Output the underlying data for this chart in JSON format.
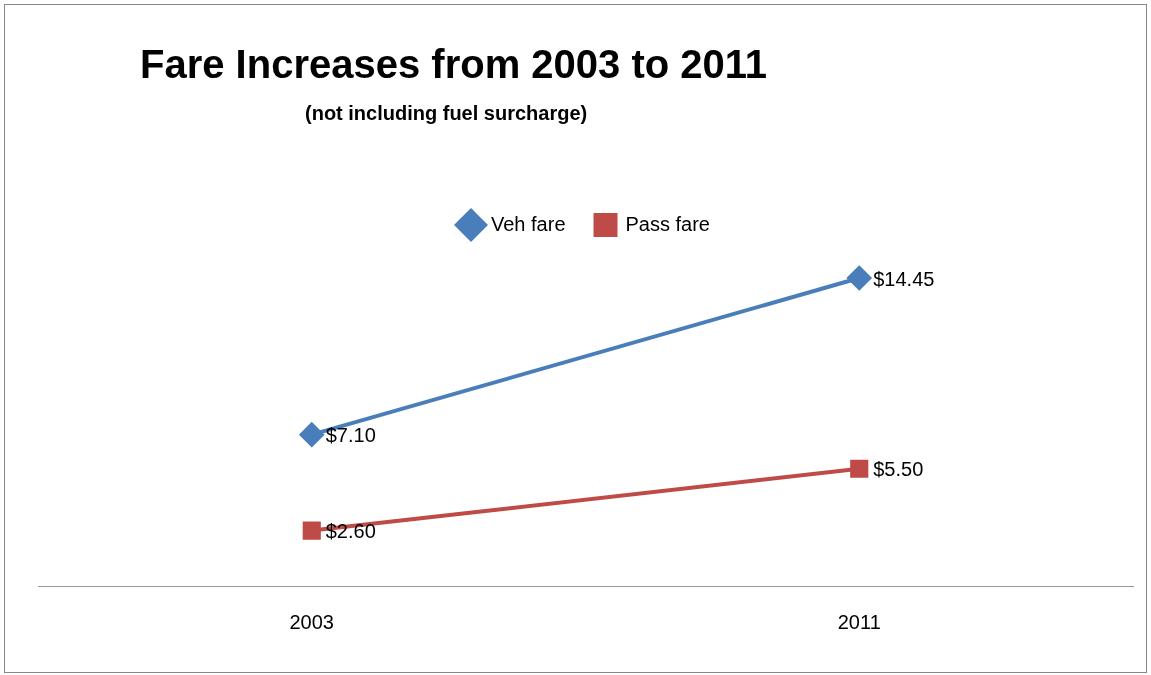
{
  "chart_data": {
    "type": "line",
    "title": "Fare Increases from 2003 to 2011",
    "subtitle": "(not including fuel surcharge)",
    "categories": [
      "2003",
      "2011"
    ],
    "series": [
      {
        "name": "Veh fare",
        "color": "#4a7ebb",
        "values": [
          7.1,
          14.45
        ],
        "marker": "diamond",
        "value_labels": [
          "$7.10",
          "$14.45"
        ]
      },
      {
        "name": "Pass fare",
        "color": "#be4b48",
        "values": [
          2.6,
          5.5
        ],
        "marker": "square",
        "value_labels": [
          "$2.60",
          "$5.50"
        ]
      }
    ],
    "legend": "top",
    "grid": false,
    "tick_labels": "x",
    "line_style": "solid"
  }
}
